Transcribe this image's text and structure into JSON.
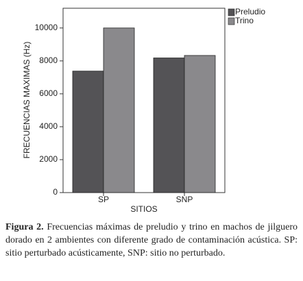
{
  "chart_data": {
    "type": "bar",
    "x_label": "SITIOS",
    "y_label": "FRECUENCIAS MAXIMAS (Hz)",
    "categories": [
      "SP",
      "SNP"
    ],
    "series": [
      {
        "name": "Preludio",
        "color": "#545356",
        "values": [
          7380,
          8180
        ]
      },
      {
        "name": "Trino",
        "color": "#8a898c",
        "values": [
          10000,
          8330
        ]
      }
    ],
    "ylim": [
      0,
      11200
    ],
    "yticks": [
      0,
      2000,
      4000,
      6000,
      8000,
      10000
    ],
    "grid": false,
    "legend": "outside-top-right"
  },
  "caption": {
    "label": "Figura 2.",
    "text": "Frecuencias máximas de preludio y trino en machos de jilguero dorado en 2 ambientes con diferente grado de contaminación acústica. SP: sitio perturbado acústicamente, SNP: sitio no perturbado."
  }
}
